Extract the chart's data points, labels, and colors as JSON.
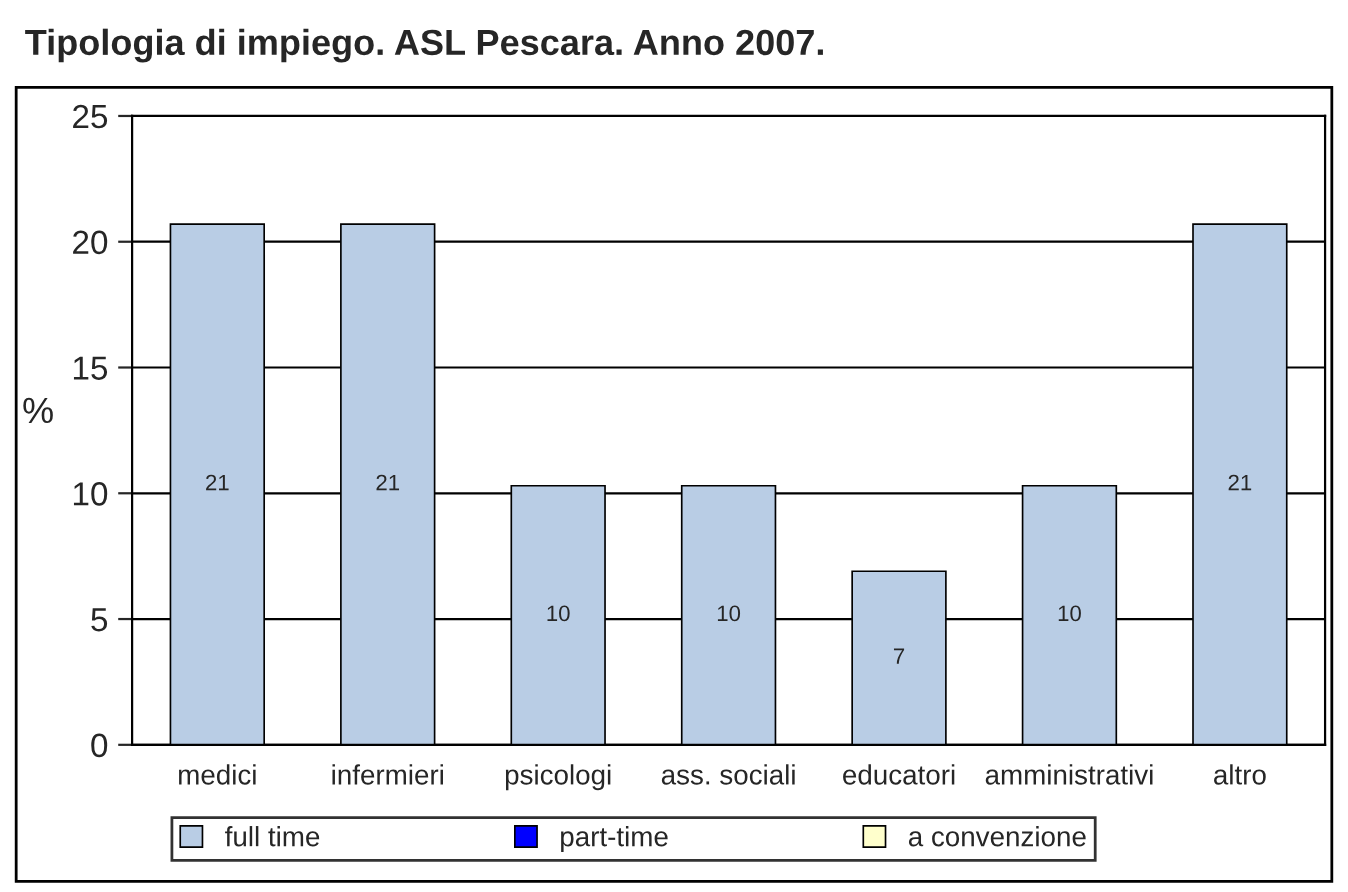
{
  "chart_data": {
    "type": "bar",
    "title": "Tipologia di impiego. ASL Pescara. Anno 2007.",
    "ylabel": "%",
    "categories": [
      "medici",
      "infermieri",
      "psicologi",
      "ass. sociali",
      "educatori",
      "amministrativi",
      "altro"
    ],
    "series": [
      {
        "name": "full time",
        "color": "#b9cde5",
        "values": [
          20.7,
          20.7,
          10.3,
          10.3,
          6.9,
          10.3,
          20.7
        ],
        "value_labels": [
          "21",
          "21",
          "10",
          "10",
          "7",
          "10",
          "21"
        ]
      },
      {
        "name": "part-time",
        "color": "#0000ff",
        "values": [
          null,
          null,
          null,
          null,
          null,
          null,
          null
        ]
      },
      {
        "name": "a convenzione",
        "color": "#ffffcc",
        "values": [
          null,
          null,
          null,
          null,
          null,
          null,
          null
        ]
      }
    ],
    "ylim": [
      0,
      25
    ],
    "yticks": [
      0,
      5,
      10,
      15,
      20,
      25
    ],
    "grid": "y",
    "legend": "bottom"
  }
}
